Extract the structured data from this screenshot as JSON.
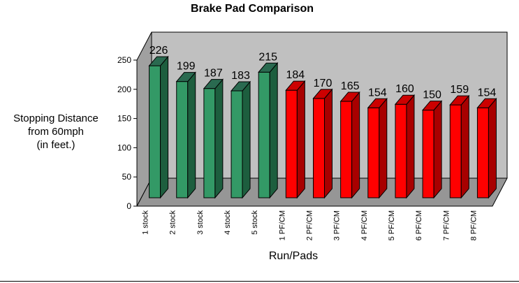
{
  "chart_data": {
    "type": "bar",
    "title": "Brake Pad Comparison",
    "xlabel": "Run/Pads",
    "ylabel": [
      "Stopping Distance",
      "from 60mph",
      "(in feet.)"
    ],
    "categories": [
      "1 stock",
      "2 stock",
      "3 stock",
      "4 stock",
      "5 stock",
      "1 PF/CM",
      "2 PF/CM",
      "3 PF/CM",
      "4 PF/CM",
      "5 PF/CM",
      "6 PF/CM",
      "7 PF/CM",
      "8 PF/CM"
    ],
    "values": [
      226,
      199,
      187,
      183,
      215,
      184,
      170,
      165,
      154,
      160,
      150,
      159,
      154
    ],
    "data_labels": [
      "226",
      "199",
      "187",
      "183",
      "215",
      "184",
      "170",
      "165",
      "154",
      "160",
      "150",
      "159",
      "154"
    ],
    "yticks": [
      "0",
      "50",
      "100",
      "150",
      "200",
      "250"
    ],
    "ylim": [
      0,
      250
    ],
    "grid": false,
    "legend": "none",
    "style": "3d",
    "colors": {
      "stock": "#339966",
      "stock_top": "#2a6a50",
      "stock_side": "#1d5e3e",
      "pfcm": "#ff0000",
      "pfcm_top": "#cc0000",
      "pfcm_side": "#a80000",
      "back_wall": "#c0c0c0",
      "floor": "#969696"
    }
  }
}
